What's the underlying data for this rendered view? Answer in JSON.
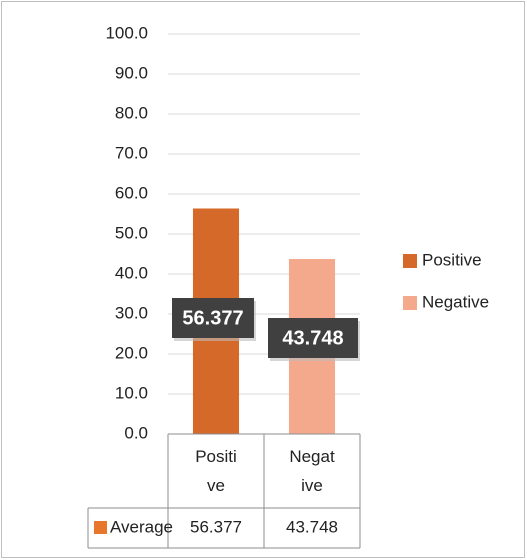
{
  "chart_data": {
    "type": "bar",
    "categories": [
      "Positive",
      "Negative"
    ],
    "category_colors": [
      "#d4692a",
      "#f4a98c"
    ],
    "series": [
      {
        "name": "Average",
        "color": "#e8772e",
        "values": [
          56.377,
          43.748
        ]
      }
    ],
    "ylim": [
      0,
      100
    ],
    "yticks": [
      {
        "value": 0,
        "label": "0.0"
      },
      {
        "value": 10,
        "label": "10.0"
      },
      {
        "value": 20,
        "label": "20.0"
      },
      {
        "value": 30,
        "label": "30.0"
      },
      {
        "value": 40,
        "label": "40.0"
      },
      {
        "value": 50,
        "label": "50.0"
      },
      {
        "value": 60,
        "label": "60.0"
      },
      {
        "value": 70,
        "label": "70.0"
      },
      {
        "value": 80,
        "label": "80.0"
      },
      {
        "value": 90,
        "label": "90.0"
      },
      {
        "value": 100,
        "label": "100.0"
      }
    ],
    "grid": true,
    "legend": "right",
    "data_table": true
  }
}
